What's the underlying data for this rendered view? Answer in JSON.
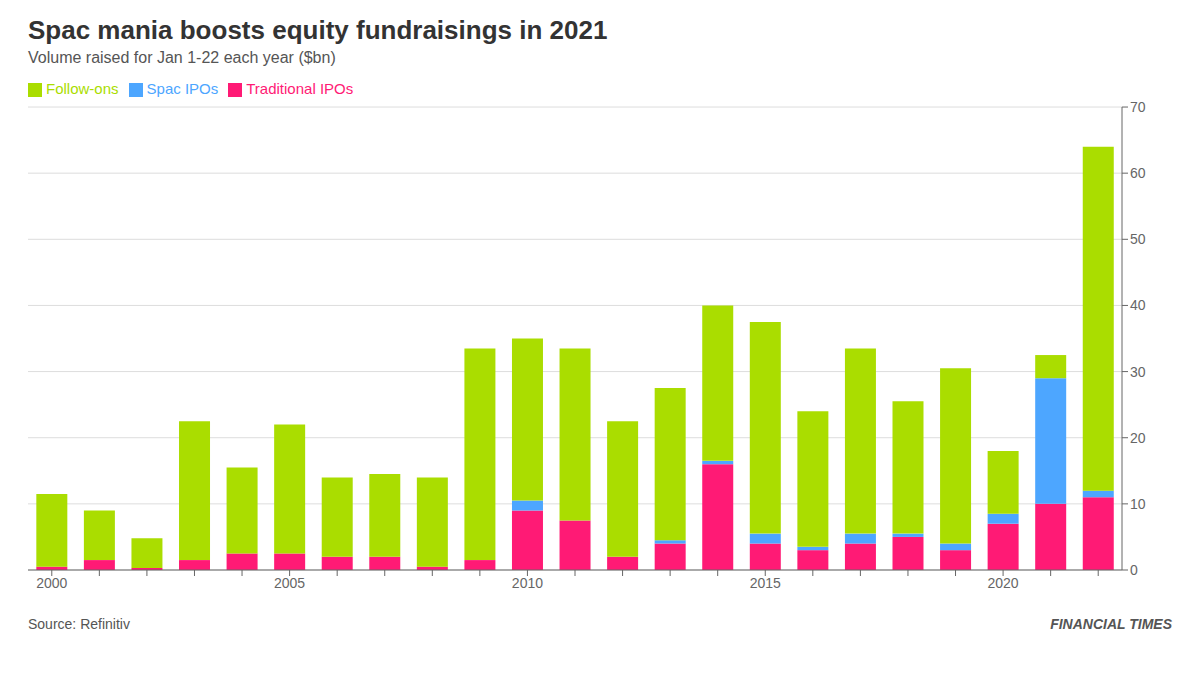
{
  "chart_data": {
    "type": "bar",
    "title": "Spac mania boosts equity fundraisings in 2021",
    "subtitle": "Volume raised for Jan 1-22 each year ($bn)",
    "annotations": [
      "Source: Refinitiv",
      "FINANCIAL TIMES"
    ],
    "categories": [
      "2000",
      null,
      null,
      null,
      null,
      "2005",
      null,
      null,
      null,
      null,
      "2010",
      null,
      null,
      null,
      null,
      "2015",
      null,
      null,
      null,
      null,
      "2020",
      null,
      null
    ],
    "series": [
      {
        "name": "Traditional IPOs",
        "color": "#ff1a75",
        "values": [
          0.5,
          1.5,
          0.3,
          1.5,
          2.5,
          2.5,
          2.0,
          2.0,
          0.5,
          1.5,
          9.0,
          7.5,
          2.0,
          4.0,
          16.0,
          4.0,
          3.0,
          4.0,
          5.0,
          3.0,
          7.0,
          10.0,
          11.0
        ]
      },
      {
        "name": "Spac IPOs",
        "color": "#4da6ff",
        "values": [
          0.0,
          0.0,
          0.0,
          0.0,
          0.0,
          0.0,
          0.0,
          0.0,
          0.0,
          0.0,
          1.5,
          0.0,
          0.0,
          0.5,
          0.5,
          1.5,
          0.5,
          1.5,
          0.5,
          1.0,
          1.5,
          19.0,
          1.0
        ]
      },
      {
        "name": "Follow-ons",
        "color": "#aadd00",
        "values": [
          11.0,
          7.5,
          4.5,
          21.0,
          13.0,
          19.5,
          12.0,
          12.5,
          13.5,
          32.0,
          24.5,
          26.0,
          20.5,
          23.0,
          23.5,
          32.0,
          20.5,
          28.0,
          20.0,
          26.5,
          9.5,
          3.5,
          52.0
        ]
      }
    ],
    "ylim": [
      0,
      70
    ],
    "yticks": [
      0,
      10,
      20,
      30,
      40,
      50,
      60,
      70
    ],
    "stacked": true,
    "grid": true,
    "legend": "upper left"
  }
}
